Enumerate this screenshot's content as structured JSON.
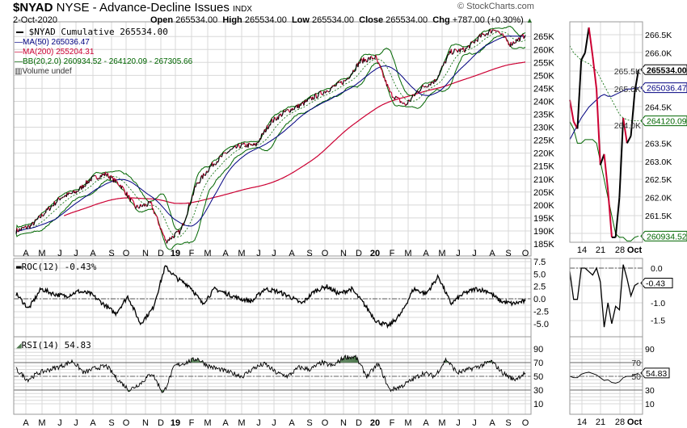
{
  "header": {
    "symbol": "$NYAD",
    "description": "NYSE - Advance-Decline Issues",
    "exchange": "INDX",
    "date": "2-Oct-2020",
    "watermark": "© StockCharts.com",
    "open_label": "Open",
    "open": "265534.00",
    "high_label": "High",
    "high": "265534.00",
    "low_label": "Low",
    "low": "265534.00",
    "close_label": "Close",
    "close": "265534.00",
    "chg_label": "Chg",
    "chg": "+787.00 (+0.30%)"
  },
  "colors": {
    "price": "#000000",
    "down": "#cc0033",
    "ma50": "#000080",
    "ma200": "#cc0033",
    "bb": "#006600",
    "grid": "#d8d8d8",
    "rsi_fill": "#4f7a4f"
  },
  "legend": {
    "price": "$NYAD Cumulative 265534.00",
    "ma50": "MA(50) 265036.47",
    "ma200": "MA(200) 255204.31",
    "bb": "BB(20,2.0) 260934.52 - 264120.09 - 267305.66",
    "volume": "Volume undef"
  },
  "chart_data": [
    {
      "type": "line",
      "name": "price",
      "yticks": [
        "265K",
        "260K",
        "255K",
        "250K",
        "245K",
        "240K",
        "235K",
        "230K",
        "225K",
        "220K",
        "215K",
        "210K",
        "205K",
        "200K",
        "195K",
        "190K",
        "185K"
      ],
      "ylim": [
        183000,
        268500
      ],
      "xticks": [
        "A",
        "M",
        "J",
        "J",
        "A",
        "S",
        "O",
        "N",
        "D",
        "19",
        "F",
        "M",
        "A",
        "M",
        "J",
        "J",
        "A",
        "S",
        "O",
        "N",
        "D",
        "20",
        "F",
        "M",
        "A",
        "M",
        "J",
        "J",
        "A",
        "S",
        "O"
      ],
      "values": [
        190000,
        192000,
        197500,
        203000,
        205000,
        210000,
        212000,
        207500,
        199000,
        200500,
        186000,
        190000,
        207500,
        215000,
        220000,
        223000,
        223000,
        232000,
        236000,
        238500,
        242000,
        245000,
        248000,
        255500,
        257000,
        243000,
        238500,
        245000,
        248000,
        259000,
        260000,
        265000,
        268000,
        262000,
        265534
      ]
    },
    {
      "type": "line",
      "name": "ROC(12)",
      "label": "ROC(12) -0.43%",
      "yticks": [
        "7.5",
        "5.0",
        "2.5",
        "0.0",
        "-2.5",
        "-5.0"
      ],
      "values": [
        1,
        -2,
        2,
        1,
        0.5,
        1.5,
        1,
        -1,
        -3,
        0.5,
        -5,
        -2,
        6.5,
        4,
        2.5,
        -1,
        2,
        1,
        0,
        -0.5,
        2,
        1.5,
        0.5,
        -1,
        1.5,
        2.5,
        1,
        2,
        -1,
        -4.5,
        -5.5,
        -3,
        2,
        1,
        4.5,
        -1,
        1,
        2,
        1.5,
        -0.5,
        -1,
        -0.43
      ]
    },
    {
      "type": "line",
      "name": "RSI(14)",
      "label": "RSI(14) 54.83",
      "yticks": [
        "90",
        "70",
        "50",
        "30",
        "10"
      ],
      "values": [
        60,
        45,
        55,
        60,
        65,
        72,
        55,
        62,
        65,
        45,
        30,
        40,
        55,
        25,
        65,
        70,
        76,
        65,
        60,
        55,
        50,
        62,
        68,
        55,
        50,
        63,
        60,
        70,
        65,
        78,
        78,
        50,
        68,
        30,
        35,
        45,
        55,
        50,
        75,
        55,
        60,
        65,
        72,
        55,
        45,
        54.83
      ]
    },
    {
      "type": "line",
      "name": "detail",
      "yticks": [
        "266.5K",
        "266.0K",
        "265.5K",
        "265.0K",
        "264.5K",
        "264.0K",
        "263.5K",
        "263.0K",
        "262.5K",
        "262.0K",
        "261.5K"
      ],
      "xticks": [
        "14",
        "21",
        "28",
        "Oct"
      ],
      "close": [
        264700,
        264100,
        263900,
        265800,
        266000,
        266700,
        265900,
        265000,
        262900,
        263200,
        262200,
        260900,
        260900,
        262000,
        264200,
        263500,
        263700,
        264900,
        265534
      ],
      "ma50": [
        263600,
        263800,
        264000,
        264200,
        264350,
        264500,
        264600,
        264700,
        264800,
        264850,
        264800,
        264800,
        264850,
        264900,
        264950,
        265000,
        265000,
        265020,
        265036.47
      ],
      "bb_mid": [
        266200,
        266000,
        265900,
        265800,
        265750,
        265700,
        265600,
        265500,
        265300,
        265100,
        264900,
        264700,
        264500,
        264300,
        264200,
        264150,
        264120,
        264120,
        264120.09
      ],
      "bb_low": [
        264100,
        263900,
        263500,
        263500,
        263600,
        263600,
        263600,
        263500,
        263000,
        262500,
        262000,
        261500,
        261000,
        260900,
        260900,
        260800,
        260800,
        260900,
        260934.52
      ],
      "labels": {
        "close": "265534.00",
        "ma50": "265036.47",
        "bb_mid": "264120.09",
        "bb_low": "260934.52"
      },
      "roc": [
        -0.1,
        -0.9,
        -0.9,
        0,
        0,
        -0.1,
        -0.2,
        0,
        -0.4,
        -1.7,
        -1.0,
        -1.6,
        -1.1,
        -1.2,
        0.1,
        -0.3,
        -0.8,
        -0.5,
        -0.43
      ],
      "roc_yticks": [
        "0.0",
        "-1.0",
        "-1.5"
      ],
      "roc_label": "-0.43",
      "rsi": [
        50,
        48,
        48,
        53,
        55,
        56,
        54,
        52,
        48,
        44,
        45,
        41,
        40,
        42,
        48,
        50,
        50,
        52,
        54.83
      ],
      "rsi_label": "54.83"
    }
  ]
}
